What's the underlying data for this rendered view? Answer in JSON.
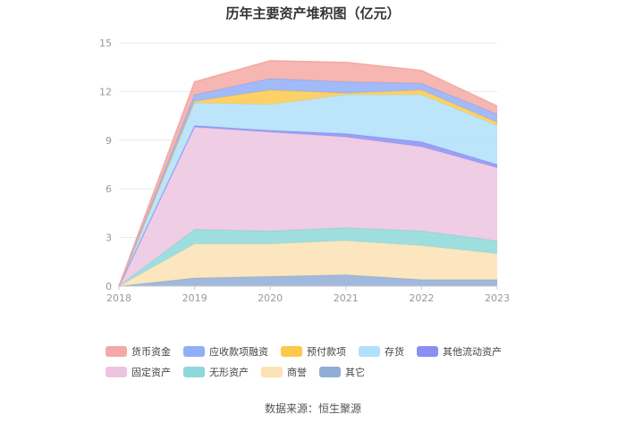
{
  "chart_data": {
    "type": "area",
    "stacked": true,
    "title": "历年主要资产堆积图（亿元）",
    "x": [
      "2018",
      "2019",
      "2020",
      "2021",
      "2022",
      "2023"
    ],
    "ylim": [
      0,
      15
    ],
    "yticks": [
      "0",
      "3",
      "6",
      "9",
      "12",
      "15"
    ],
    "grid": true,
    "legend_position": "bottom",
    "series": [
      {
        "name": "货币资金",
        "color": "#f4a9a3",
        "values": [
          0,
          0.8,
          1.1,
          1.2,
          0.8,
          0.5
        ]
      },
      {
        "name": "应收款项融资",
        "color": "#91aef9",
        "values": [
          0,
          0.4,
          0.7,
          0.7,
          0.4,
          0.5
        ]
      },
      {
        "name": "预付款项",
        "color": "#fdc94c",
        "values": [
          0,
          0.1,
          0.9,
          0.1,
          0.3,
          0.2
        ]
      },
      {
        "name": "存货",
        "color": "#b0e0fb",
        "values": [
          0,
          1.4,
          1.6,
          2.4,
          2.9,
          2.4
        ]
      },
      {
        "name": "其他流动资产",
        "color": "#8b8ff3",
        "values": [
          0,
          0.1,
          0.1,
          0.2,
          0.3,
          0.2
        ]
      },
      {
        "name": "固定资产",
        "color": "#ecc4e0",
        "values": [
          0,
          6.3,
          6.1,
          5.6,
          5.2,
          4.5
        ]
      },
      {
        "name": "无形资产",
        "color": "#8ed8d9",
        "values": [
          0,
          0.9,
          0.8,
          0.8,
          0.9,
          0.8
        ]
      },
      {
        "name": "商誉",
        "color": "#fce2b4",
        "values": [
          0,
          2.1,
          2.0,
          2.1,
          2.1,
          1.6
        ]
      },
      {
        "name": "其它",
        "color": "#8fadd6",
        "values": [
          0,
          0.5,
          0.6,
          0.7,
          0.4,
          0.4
        ]
      }
    ]
  },
  "source": "数据来源：恒生聚源"
}
